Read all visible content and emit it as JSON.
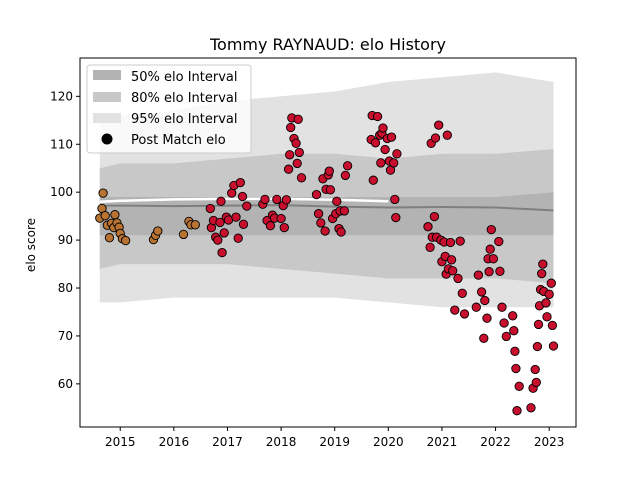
{
  "chart_data": {
    "type": "scatter",
    "title": "Tommy RAYNAUD: elo History",
    "xlabel": "",
    "ylabel": "elo score",
    "xlim": [
      2014.25,
      2023.5
    ],
    "ylim": [
      51,
      128
    ],
    "xticks": [
      2015,
      2016,
      2017,
      2018,
      2019,
      2020,
      2021,
      2022,
      2023
    ],
    "yticks": [
      60,
      70,
      80,
      90,
      100,
      110,
      120
    ],
    "legend": {
      "placement": "top-left",
      "entries": [
        "50% elo Interval",
        "80% elo Interval",
        "95% elo Interval",
        "Post Match elo"
      ]
    },
    "colors": {
      "band50": "#b3b3b3",
      "band80": "#c8c8c8",
      "band95": "#e2e2e2",
      "median_line": "#7f7f7f",
      "mean_line": "#ffffff",
      "point_early": "#b87333",
      "point_late": "#c8102e",
      "marker_edge": "#000000"
    },
    "intervals": {
      "x": [
        2014.62,
        2015,
        2016,
        2017,
        2018,
        2019,
        2020,
        2021,
        2022,
        2023.08
      ],
      "p95_upper": [
        115,
        116,
        117,
        119,
        120,
        121,
        123,
        124,
        125,
        123
      ],
      "p80_upper": [
        105,
        106,
        106,
        107,
        108,
        108,
        107,
        108,
        108,
        109
      ],
      "p50_upper": [
        99,
        99,
        99,
        99,
        99,
        99,
        99,
        99,
        99,
        100
      ],
      "median": [
        97.2,
        97.2,
        97.1,
        97.2,
        97.3,
        97.0,
        96.8,
        96.9,
        96.8,
        96.2
      ],
      "mean": [
        98.0,
        98.2,
        98.5,
        98.6,
        98.6,
        98.4,
        98.1,
        null,
        null,
        null
      ],
      "p50_lower": [
        91,
        91,
        91,
        91,
        91,
        91,
        91,
        91,
        91,
        91
      ],
      "p80_lower": [
        84,
        85,
        85,
        85,
        84,
        83,
        82,
        82,
        82,
        81
      ],
      "p95_lower": [
        77,
        77,
        78,
        78,
        78,
        78,
        77,
        76,
        76,
        76
      ]
    },
    "series": [
      {
        "name": "Post Match elo",
        "points": [
          [
            2014.62,
            94.6
          ],
          [
            2014.66,
            96.6
          ],
          [
            2014.68,
            99.8
          ],
          [
            2014.72,
            95.1
          ],
          [
            2014.76,
            93.1
          ],
          [
            2014.8,
            90.5
          ],
          [
            2014.84,
            93.5
          ],
          [
            2014.88,
            92.6
          ],
          [
            2014.9,
            95.3
          ],
          [
            2014.94,
            93.6
          ],
          [
            2014.98,
            92.7
          ],
          [
            2015.0,
            91.4
          ],
          [
            2015.04,
            90.3
          ],
          [
            2015.1,
            89.9
          ],
          [
            2015.62,
            90.1
          ],
          [
            2015.66,
            91.0
          ],
          [
            2015.7,
            91.9
          ],
          [
            2016.18,
            91.2
          ],
          [
            2016.28,
            93.9
          ],
          [
            2016.32,
            93.2
          ],
          [
            2016.4,
            93.2
          ],
          [
            2016.68,
            96.6
          ],
          [
            2016.7,
            92.6
          ],
          [
            2016.74,
            94.1
          ],
          [
            2016.78,
            90.6
          ],
          [
            2016.82,
            90.0
          ],
          [
            2016.86,
            93.7
          ],
          [
            2016.88,
            98.1
          ],
          [
            2016.9,
            87.4
          ],
          [
            2016.94,
            91.5
          ],
          [
            2016.98,
            94.8
          ],
          [
            2017.02,
            94.2
          ],
          [
            2017.08,
            99.8
          ],
          [
            2017.12,
            101.4
          ],
          [
            2017.16,
            94.8
          ],
          [
            2017.2,
            90.4
          ],
          [
            2017.24,
            102.0
          ],
          [
            2017.28,
            99.1
          ],
          [
            2017.3,
            93.3
          ],
          [
            2017.36,
            97.1
          ],
          [
            2017.66,
            97.5
          ],
          [
            2017.7,
            98.5
          ],
          [
            2017.74,
            94.1
          ],
          [
            2017.8,
            93.0
          ],
          [
            2017.84,
            95.2
          ],
          [
            2017.88,
            94.6
          ],
          [
            2017.92,
            98.5
          ],
          [
            2018.0,
            94.5
          ],
          [
            2018.04,
            97.2
          ],
          [
            2018.06,
            92.6
          ],
          [
            2018.1,
            98.4
          ],
          [
            2018.14,
            104.8
          ],
          [
            2018.16,
            107.8
          ],
          [
            2018.18,
            113.5
          ],
          [
            2018.2,
            115.5
          ],
          [
            2018.24,
            111.2
          ],
          [
            2018.28,
            110.2
          ],
          [
            2018.3,
            106.0
          ],
          [
            2018.32,
            115.2
          ],
          [
            2018.34,
            108.3
          ],
          [
            2018.38,
            103.0
          ],
          [
            2018.66,
            99.5
          ],
          [
            2018.7,
            95.5
          ],
          [
            2018.74,
            93.6
          ],
          [
            2018.78,
            102.8
          ],
          [
            2018.82,
            91.9
          ],
          [
            2018.84,
            100.6
          ],
          [
            2018.88,
            103.6
          ],
          [
            2018.9,
            104.4
          ],
          [
            2018.92,
            100.5
          ],
          [
            2018.96,
            94.5
          ],
          [
            2019.02,
            95.5
          ],
          [
            2019.04,
            98.1
          ],
          [
            2019.08,
            92.4
          ],
          [
            2019.1,
            96.1
          ],
          [
            2019.12,
            91.7
          ],
          [
            2019.18,
            96.1
          ],
          [
            2019.2,
            103.5
          ],
          [
            2019.24,
            105.5
          ],
          [
            2019.68,
            111.0
          ],
          [
            2019.7,
            116.0
          ],
          [
            2019.72,
            102.5
          ],
          [
            2019.76,
            110.3
          ],
          [
            2019.8,
            115.8
          ],
          [
            2019.84,
            111.9
          ],
          [
            2019.86,
            106.1
          ],
          [
            2019.88,
            112.3
          ],
          [
            2019.9,
            113.4
          ],
          [
            2019.94,
            108.9
          ],
          [
            2019.98,
            111.2
          ],
          [
            2020.02,
            106.5
          ],
          [
            2020.04,
            104.6
          ],
          [
            2020.06,
            111.5
          ],
          [
            2020.1,
            106.1
          ],
          [
            2020.12,
            98.5
          ],
          [
            2020.14,
            94.7
          ],
          [
            2020.16,
            108.0
          ],
          [
            2020.74,
            92.8
          ],
          [
            2020.78,
            88.5
          ],
          [
            2020.8,
            110.2
          ],
          [
            2020.82,
            90.6
          ],
          [
            2020.86,
            94.9
          ],
          [
            2020.88,
            111.3
          ],
          [
            2020.9,
            90.6
          ],
          [
            2020.94,
            114.0
          ],
          [
            2020.98,
            90.0
          ],
          [
            2021.0,
            85.5
          ],
          [
            2021.04,
            89.6
          ],
          [
            2021.06,
            86.6
          ],
          [
            2021.08,
            82.9
          ],
          [
            2021.1,
            111.9
          ],
          [
            2021.12,
            84.0
          ],
          [
            2021.16,
            89.5
          ],
          [
            2021.18,
            85.9
          ],
          [
            2021.2,
            83.6
          ],
          [
            2021.24,
            75.4
          ],
          [
            2021.3,
            82.0
          ],
          [
            2021.34,
            89.8
          ],
          [
            2021.38,
            78.9
          ],
          [
            2021.42,
            74.6
          ],
          [
            2021.64,
            76.0
          ],
          [
            2021.68,
            82.7
          ],
          [
            2021.74,
            79.2
          ],
          [
            2021.78,
            69.5
          ],
          [
            2021.8,
            77.4
          ],
          [
            2021.84,
            73.7
          ],
          [
            2021.86,
            86.1
          ],
          [
            2021.88,
            83.4
          ],
          [
            2021.9,
            88.1
          ],
          [
            2021.92,
            92.2
          ],
          [
            2021.96,
            86.1
          ],
          [
            2022.06,
            89.7
          ],
          [
            2022.08,
            83.5
          ],
          [
            2022.12,
            76.0
          ],
          [
            2022.16,
            72.7
          ],
          [
            2022.2,
            69.9
          ],
          [
            2022.32,
            74.2
          ],
          [
            2022.34,
            71.1
          ],
          [
            2022.36,
            66.8
          ],
          [
            2022.38,
            63.2
          ],
          [
            2022.4,
            54.4
          ],
          [
            2022.44,
            59.5
          ],
          [
            2022.66,
            55.0
          ],
          [
            2022.7,
            59.1
          ],
          [
            2022.74,
            63.0
          ],
          [
            2022.76,
            60.3
          ],
          [
            2022.78,
            67.8
          ],
          [
            2022.8,
            72.4
          ],
          [
            2022.82,
            76.3
          ],
          [
            2022.84,
            79.7
          ],
          [
            2022.86,
            83.0
          ],
          [
            2022.88,
            85.0
          ],
          [
            2022.9,
            79.3
          ],
          [
            2022.94,
            76.9
          ],
          [
            2022.96,
            74.0
          ],
          [
            2023.0,
            78.7
          ],
          [
            2023.04,
            81.0
          ],
          [
            2023.06,
            72.2
          ],
          [
            2023.08,
            67.9
          ]
        ]
      }
    ]
  }
}
